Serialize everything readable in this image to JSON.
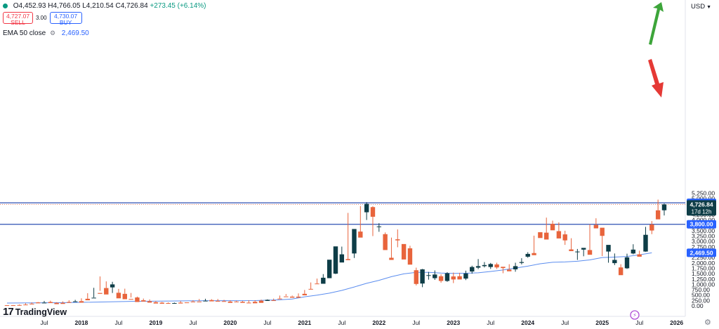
{
  "legend": {
    "open": "O4,452.93",
    "high": "H4,766.05",
    "low": "L4,210.54",
    "close": "C4,726.84",
    "change": "+273.45 (+6.14%)",
    "sell_price": "4,727.07",
    "sell_label": "SELL",
    "spread": "3.00",
    "buy_price": "4,730.07",
    "buy_label": "BUY",
    "ema_label": "EMA 50 close",
    "ema_value": "2,469.50",
    "ema_icon": "eye-settings-icon"
  },
  "currency": {
    "label": "USD"
  },
  "logo": {
    "mark": "17",
    "name": "TradingView"
  },
  "price_tags": {
    "upper_line": "4,800.00",
    "last_price": "4,726.84",
    "countdown": "17d 12h",
    "lower_line": "3,800.00",
    "ema_tag": "2,469.50"
  },
  "colors": {
    "up": "#0e3d47",
    "down": "#e8643c",
    "ema": "#5b8def",
    "hline": "#2d4fb3",
    "arrow_up": "#3da53a",
    "arrow_down": "#e53935",
    "axis_text": "#131722",
    "tag_bg": "#2962ff"
  },
  "chart_data": {
    "type": "candlestick",
    "timeframe": "monthly",
    "y_ticks": [
      "0.00",
      "250.00",
      "500.00",
      "750.00",
      "1,000.00",
      "1,250.00",
      "1,500.00",
      "1,750.00",
      "2,000.00",
      "2,250.00",
      "2,500.00",
      "2,750.00",
      "3,000.00",
      "3,250.00",
      "3,500.00",
      "3,750.00",
      "4,000.00",
      "4,250.00",
      "4,500.00",
      "4,750.00",
      "5,000.00",
      "5,250.00"
    ],
    "x_ticks": [
      {
        "label": "Jul",
        "i": 6
      },
      {
        "label": "2018",
        "i": 12
      },
      {
        "label": "Jul",
        "i": 18
      },
      {
        "label": "2019",
        "i": 24
      },
      {
        "label": "Jul",
        "i": 30
      },
      {
        "label": "2020",
        "i": 36
      },
      {
        "label": "Jul",
        "i": 42
      },
      {
        "label": "2021",
        "i": 48
      },
      {
        "label": "Jul",
        "i": 54
      },
      {
        "label": "2022",
        "i": 60
      },
      {
        "label": "Jul",
        "i": 66
      },
      {
        "label": "2023",
        "i": 72
      },
      {
        "label": "Jul",
        "i": 78
      },
      {
        "label": "2024",
        "i": 84
      },
      {
        "label": "Jul",
        "i": 90
      },
      {
        "label": "2025",
        "i": 96
      },
      {
        "label": "Jul",
        "i": 102
      },
      {
        "label": "2026",
        "i": 108
      }
    ],
    "horizontal_lines": [
      4800,
      3800
    ],
    "candles": [
      [
        30,
        30,
        20,
        15
      ],
      [
        30,
        40,
        30,
        25
      ],
      [
        40,
        70,
        40,
        30
      ],
      [
        60,
        120,
        60,
        40
      ],
      [
        100,
        160,
        100,
        70
      ],
      [
        160,
        180,
        140,
        120
      ],
      [
        150,
        230,
        150,
        150
      ],
      [
        180,
        240,
        140,
        130
      ],
      [
        140,
        170,
        140,
        80
      ],
      [
        140,
        210,
        140,
        90
      ],
      [
        180,
        260,
        180,
        140
      ],
      [
        210,
        280,
        200,
        210
      ],
      [
        220,
        350,
        220,
        150
      ],
      [
        330,
        590,
        330,
        260
      ],
      [
        380,
        840,
        390,
        380
      ],
      [
        600,
        1370,
        700,
        560
      ],
      [
        830,
        1140,
        830,
        530
      ],
      [
        860,
        1120,
        600,
        1000
      ],
      [
        610,
        790,
        610,
        350
      ],
      [
        560,
        800,
        560,
        310
      ],
      [
        320,
        600,
        390,
        290
      ],
      [
        390,
        430,
        300,
        180
      ],
      [
        260,
        340,
        260,
        200
      ],
      [
        220,
        300,
        230,
        150
      ],
      [
        170,
        230,
        170,
        110
      ],
      [
        150,
        180,
        150,
        100
      ],
      [
        130,
        160,
        130,
        100
      ],
      [
        130,
        160,
        140,
        130
      ],
      [
        150,
        220,
        150,
        110
      ],
      [
        160,
        200,
        200,
        130
      ],
      [
        200,
        260,
        200,
        170
      ],
      [
        200,
        320,
        220,
        190
      ],
      [
        230,
        330,
        230,
        240
      ],
      [
        270,
        310,
        250,
        210
      ],
      [
        230,
        320,
        220,
        220
      ],
      [
        220,
        280,
        200,
        200
      ],
      [
        200,
        260,
        200,
        140
      ],
      [
        200,
        240,
        200,
        180
      ],
      [
        190,
        230,
        190,
        140
      ],
      [
        150,
        260,
        150,
        140
      ],
      [
        190,
        260,
        190,
        120
      ],
      [
        240,
        290,
        240,
        140
      ],
      [
        230,
        300,
        230,
        280
      ],
      [
        260,
        340,
        260,
        230
      ],
      [
        340,
        480,
        340,
        330
      ],
      [
        440,
        550,
        460,
        420
      ],
      [
        430,
        480,
        440,
        380
      ],
      [
        430,
        580,
        430,
        380
      ],
      [
        560,
        740,
        560,
        490
      ],
      [
        790,
        1090,
        780,
        760
      ],
      [
        1040,
        1270,
        1040,
        1030
      ],
      [
        1030,
        1480,
        1030,
        1310
      ],
      [
        1290,
        1820,
        1290,
        2150
      ],
      [
        1500,
        2490,
        1480,
        2770
      ],
      [
        2020,
        2760,
        2050,
        2400
      ],
      [
        2180,
        4330,
        2150,
        2130
      ],
      [
        2440,
        3530,
        2230,
        3580
      ],
      [
        3460,
        4650,
        3420,
        3180
      ],
      [
        4360,
        4830,
        4000,
        4750
      ],
      [
        4600,
        4640,
        3250,
        4150
      ],
      [
        3690,
        3850,
        3450,
        3700
      ],
      [
        3340,
        3420,
        2900,
        2600
      ],
      [
        2240,
        3180,
        2220,
        2140
      ],
      [
        3100,
        3560,
        2730,
        3050
      ],
      [
        2880,
        2840,
        2600,
        2160
      ],
      [
        2680,
        2800,
        1940,
        1920
      ],
      [
        1660,
        1780,
        950,
        1020
      ],
      [
        1040,
        1720,
        870,
        1700
      ],
      [
        1420,
        1580,
        1220,
        1430
      ],
      [
        1290,
        1650,
        1210,
        1460
      ],
      [
        1380,
        1470,
        1080,
        1160
      ],
      [
        1160,
        1570,
        1120,
        1520
      ],
      [
        1370,
        1550,
        1060,
        1230
      ],
      [
        1380,
        1540,
        1240,
        1230
      ],
      [
        1270,
        1640,
        1200,
        1510
      ],
      [
        1600,
        1870,
        1500,
        1810
      ],
      [
        1780,
        2180,
        1710,
        1850
      ],
      [
        1850,
        2040,
        1790,
        1900
      ],
      [
        1810,
        2000,
        1720,
        1950
      ],
      [
        1930,
        2010,
        1720,
        1790
      ],
      [
        1820,
        1770,
        1520,
        1760
      ],
      [
        1690,
        1940,
        1690,
        1610
      ],
      [
        1700,
        2010,
        1590,
        1850
      ],
      [
        2000,
        2220,
        1930,
        2040
      ],
      [
        2290,
        2500,
        2240,
        2420
      ],
      [
        2460,
        3270,
        2380,
        2360
      ],
      [
        3430,
        3410,
        3280,
        3160
      ],
      [
        3410,
        4110,
        3360,
        3090
      ],
      [
        3820,
        3970,
        3570,
        3520
      ],
      [
        3480,
        3890,
        3380,
        3140
      ],
      [
        3330,
        3500,
        2840,
        3050
      ],
      [
        2630,
        3150,
        2580,
        2550
      ],
      [
        2510,
        2650,
        2140,
        2530
      ],
      [
        2620,
        2700,
        2310,
        2700
      ],
      [
        2600,
        3800,
        2580,
        2380
      ],
      [
        3770,
        4080,
        3640,
        3610
      ],
      [
        3640,
        3540,
        2320,
        3260
      ],
      [
        2530,
        2780,
        2010,
        2840
      ],
      [
        1990,
        2440,
        1900,
        2140
      ],
      [
        1790,
        1940,
        1550,
        1430
      ],
      [
        1750,
        2430,
        1720,
        2260
      ],
      [
        2440,
        2870,
        2400,
        2620
      ],
      [
        2400,
        2570,
        2330,
        2290
      ],
      [
        2530,
        3680,
        2520,
        3310
      ],
      [
        3790,
        3950,
        3340,
        3510
      ],
      [
        4450,
        4950,
        4180,
        4030
      ],
      [
        4453,
        4766,
        4211,
        4727
      ]
    ],
    "ema50": [
      [
        0,
        130
      ],
      [
        10,
        150
      ],
      [
        20,
        210
      ],
      [
        30,
        235
      ],
      [
        40,
        245
      ],
      [
        44,
        280
      ],
      [
        46,
        320
      ],
      [
        48,
        420
      ],
      [
        50,
        500
      ],
      [
        52,
        590
      ],
      [
        54,
        720
      ],
      [
        56,
        880
      ],
      [
        58,
        1050
      ],
      [
        60,
        1190
      ],
      [
        62,
        1360
      ],
      [
        64,
        1490
      ],
      [
        66,
        1560
      ],
      [
        68,
        1560
      ],
      [
        70,
        1525
      ],
      [
        72,
        1510
      ],
      [
        74,
        1520
      ],
      [
        76,
        1540
      ],
      [
        78,
        1600
      ],
      [
        80,
        1670
      ],
      [
        82,
        1760
      ],
      [
        84,
        1850
      ],
      [
        86,
        1960
      ],
      [
        88,
        2030
      ],
      [
        90,
        2045
      ],
      [
        92,
        2080
      ],
      [
        94,
        2140
      ],
      [
        96,
        2250
      ],
      [
        98,
        2270
      ],
      [
        100,
        2300
      ],
      [
        102,
        2380
      ],
      [
        104,
        2469.5
      ]
    ],
    "arrows": [
      {
        "direction": "up",
        "color": "green"
      },
      {
        "direction": "down",
        "color": "red"
      }
    ]
  }
}
